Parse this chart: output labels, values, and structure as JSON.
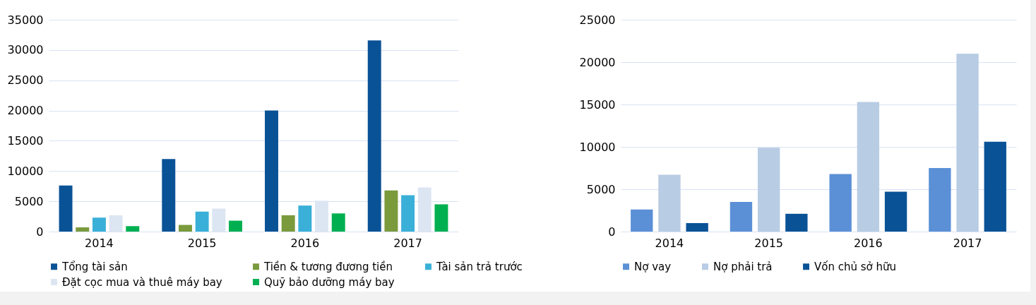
{
  "chart_data": [
    {
      "type": "bar",
      "categories": [
        "2014",
        "2015",
        "2016",
        "2017"
      ],
      "ylim": [
        0,
        35000
      ],
      "yticks": [
        0,
        5000,
        10000,
        15000,
        20000,
        25000,
        30000,
        35000
      ],
      "grid": "y",
      "legend": "bottom",
      "series": [
        {
          "name": "Tổng tài sản",
          "color": "#0a5296",
          "values": [
            7600,
            12000,
            20000,
            31600
          ]
        },
        {
          "name": "Tiền & tương đương tiền",
          "color": "#7a9a3c",
          "values": [
            700,
            1100,
            2700,
            6800
          ]
        },
        {
          "name": "Tài sản trả trước",
          "color": "#3ab0d8",
          "values": [
            2300,
            3300,
            4300,
            6000
          ]
        },
        {
          "name": "Đặt cọc mua và thuê máy bay",
          "color": "#dce6f2",
          "values": [
            2700,
            3800,
            5100,
            7300
          ]
        },
        {
          "name": "Quỹ bảo dưỡng máy bay",
          "color": "#00b050",
          "values": [
            900,
            1800,
            3000,
            4500
          ]
        }
      ]
    },
    {
      "type": "bar",
      "categories": [
        "2014",
        "2015",
        "2016",
        "2017"
      ],
      "ylim": [
        0,
        25000
      ],
      "yticks": [
        0,
        5000,
        10000,
        15000,
        20000,
        25000
      ],
      "grid": "y",
      "legend": "bottom",
      "series": [
        {
          "name": "Nợ vay",
          "color": "#5b90d6",
          "values": [
            2600,
            3500,
            6800,
            7500
          ]
        },
        {
          "name": "Nợ phải trả",
          "color": "#b8cce4",
          "values": [
            6700,
            9900,
            15300,
            21000
          ]
        },
        {
          "name": "Vốn chủ sở hữu",
          "color": "#0a5296",
          "values": [
            1000,
            2100,
            4700,
            10600
          ]
        }
      ]
    }
  ]
}
